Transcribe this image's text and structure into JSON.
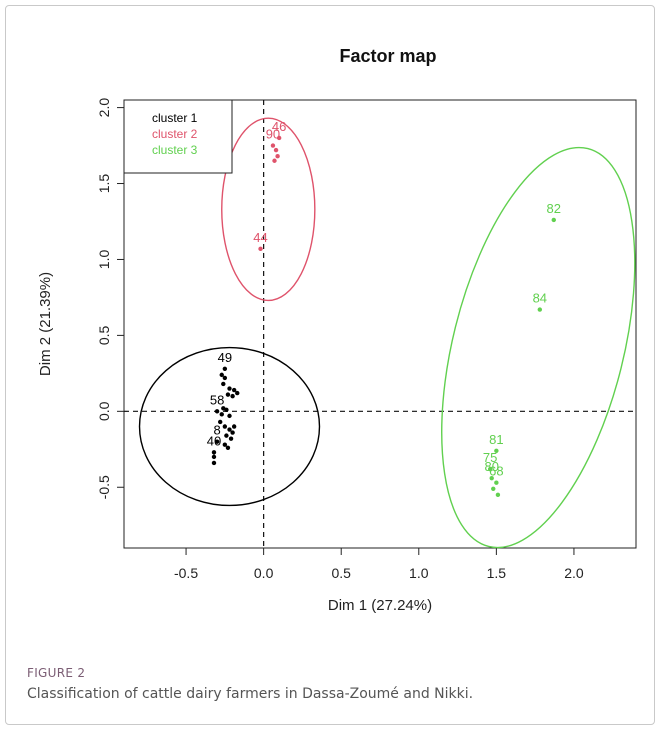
{
  "figure": {
    "label": "FIGURE 2",
    "caption": "Classification of cattle dairy farmers in Dassa-Zoumé and Nikki."
  },
  "chart_data": {
    "type": "scatter",
    "title": "Factor map",
    "xlabel": "Dim 1 (27.24%)",
    "ylabel": "Dim 2 (21.39%)",
    "xlim": [
      -0.9,
      2.4
    ],
    "ylim": [
      -0.9,
      2.05
    ],
    "xticks": [
      -0.5,
      0.0,
      0.5,
      1.0,
      1.5,
      2.0
    ],
    "xtick_labels": [
      "-0.5",
      "0.0",
      "0.5",
      "1.0",
      "1.5",
      "2.0"
    ],
    "yticks": [
      -0.5,
      0.0,
      0.5,
      1.0,
      1.5,
      2.0
    ],
    "ytick_labels": [
      "-0.5",
      "0.0",
      "0.5",
      "1.0",
      "1.5",
      "2.0"
    ],
    "reference_lines": {
      "x": 0,
      "y": 0
    },
    "legend": {
      "position": "top-left",
      "entries": [
        "cluster 1",
        "cluster 2",
        "cluster 3"
      ]
    },
    "series": [
      {
        "name": "cluster 1",
        "color": "#000000",
        "ellipse": {
          "cx": -0.22,
          "cy": -0.1,
          "rx": 0.58,
          "ry": 0.52
        },
        "points": [
          {
            "x": -0.25,
            "y": 0.28,
            "label": "49"
          },
          {
            "x": -0.25,
            "y": 0.22,
            "label": ""
          },
          {
            "x": -0.26,
            "y": 0.18,
            "label": ""
          },
          {
            "x": -0.27,
            "y": 0.24,
            "label": ""
          },
          {
            "x": -0.22,
            "y": 0.15,
            "label": ""
          },
          {
            "x": -0.19,
            "y": 0.14,
            "label": ""
          },
          {
            "x": -0.23,
            "y": 0.11,
            "label": ""
          },
          {
            "x": -0.2,
            "y": 0.1,
            "label": ""
          },
          {
            "x": -0.17,
            "y": 0.12,
            "label": ""
          },
          {
            "x": -0.26,
            "y": 0.02,
            "label": ""
          },
          {
            "x": -0.3,
            "y": 0.0,
            "label": "58"
          },
          {
            "x": -0.27,
            "y": -0.02,
            "label": ""
          },
          {
            "x": -0.24,
            "y": 0.01,
            "label": ""
          },
          {
            "x": -0.22,
            "y": -0.03,
            "label": ""
          },
          {
            "x": -0.28,
            "y": -0.07,
            "label": ""
          },
          {
            "x": -0.25,
            "y": -0.1,
            "label": ""
          },
          {
            "x": -0.22,
            "y": -0.12,
            "label": ""
          },
          {
            "x": -0.2,
            "y": -0.14,
            "label": ""
          },
          {
            "x": -0.24,
            "y": -0.16,
            "label": ""
          },
          {
            "x": -0.21,
            "y": -0.18,
            "label": ""
          },
          {
            "x": -0.19,
            "y": -0.1,
            "label": ""
          },
          {
            "x": -0.3,
            "y": -0.2,
            "label": "8"
          },
          {
            "x": -0.25,
            "y": -0.22,
            "label": ""
          },
          {
            "x": -0.23,
            "y": -0.24,
            "label": ""
          },
          {
            "x": -0.32,
            "y": -0.27,
            "label": "40"
          },
          {
            "x": -0.32,
            "y": -0.3,
            "label": ""
          },
          {
            "x": -0.32,
            "y": -0.34,
            "label": ""
          }
        ]
      },
      {
        "name": "cluster 2",
        "color": "#df536b",
        "ellipse": {
          "cx": 0.03,
          "cy": 1.33,
          "rx": 0.3,
          "ry": 0.6
        },
        "points": [
          {
            "x": 0.1,
            "y": 1.8,
            "label": "46"
          },
          {
            "x": 0.06,
            "y": 1.75,
            "label": "90"
          },
          {
            "x": 0.08,
            "y": 1.72,
            "label": ""
          },
          {
            "x": 0.09,
            "y": 1.68,
            "label": ""
          },
          {
            "x": 0.07,
            "y": 1.65,
            "label": ""
          },
          {
            "x": -0.02,
            "y": 1.07,
            "label": "44"
          }
        ]
      },
      {
        "name": "cluster 3",
        "color": "#61d04f",
        "ellipse": {
          "cx": 1.77,
          "cy": 0.42,
          "rx": 0.55,
          "ry": 1.35,
          "angle_deg": 14
        },
        "points": [
          {
            "x": 1.87,
            "y": 1.26,
            "label": "82"
          },
          {
            "x": 1.78,
            "y": 0.67,
            "label": "84"
          },
          {
            "x": 1.5,
            "y": -0.26,
            "label": "81"
          },
          {
            "x": 1.46,
            "y": -0.38,
            "label": "75"
          },
          {
            "x": 1.47,
            "y": -0.44,
            "label": "80"
          },
          {
            "x": 1.5,
            "y": -0.47,
            "label": "68"
          },
          {
            "x": 1.48,
            "y": -0.51,
            "label": ""
          },
          {
            "x": 1.51,
            "y": -0.55,
            "label": ""
          }
        ]
      }
    ]
  }
}
